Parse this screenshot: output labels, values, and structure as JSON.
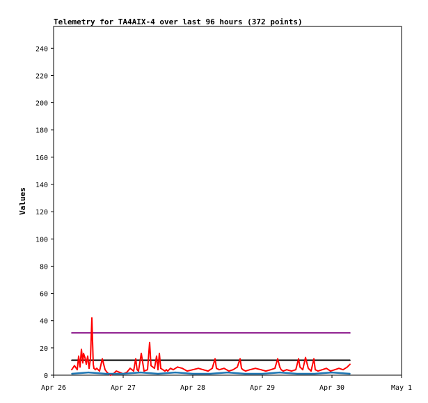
{
  "chart_data": {
    "type": "line",
    "title": "Telemetry for TA4AIX-4 over last 96 hours (372 points)",
    "xlabel": "",
    "ylabel": "Values",
    "x_ticks": [
      "Apr 26",
      "Apr 27",
      "Apr 28",
      "Apr 29",
      "Apr 30",
      "May 1"
    ],
    "x_range_days": [
      0,
      5
    ],
    "y_ticks": [
      0,
      20,
      40,
      60,
      80,
      100,
      120,
      140,
      160,
      180,
      200,
      220,
      240
    ],
    "ylim": [
      0,
      256
    ],
    "grid": false,
    "legend": "none",
    "series": [
      {
        "color": "#800080",
        "x_days": [
          0.26,
          4.26
        ],
        "values": [
          31,
          31
        ]
      },
      {
        "color": "#000000",
        "x_days": [
          0.26,
          4.26
        ],
        "values": [
          11,
          11
        ]
      },
      {
        "color": "#ff0000",
        "x_days": [
          0.26,
          0.3,
          0.34,
          0.36,
          0.38,
          0.4,
          0.42,
          0.43,
          0.45,
          0.47,
          0.49,
          0.51,
          0.53,
          0.55,
          0.57,
          0.58,
          0.6,
          0.62,
          0.64,
          0.66,
          0.7,
          0.74,
          0.77,
          0.79,
          0.82,
          0.86,
          0.9,
          0.95,
          1.0,
          1.05,
          1.1,
          1.15,
          1.18,
          1.2,
          1.22,
          1.26,
          1.3,
          1.35,
          1.38,
          1.4,
          1.45,
          1.48,
          1.5,
          1.52,
          1.54,
          1.57,
          1.6,
          1.62,
          1.64,
          1.68,
          1.72,
          1.78,
          1.85,
          1.92,
          2.0,
          2.08,
          2.15,
          2.22,
          2.28,
          2.32,
          2.34,
          2.38,
          2.45,
          2.52,
          2.58,
          2.64,
          2.68,
          2.7,
          2.72,
          2.76,
          2.82,
          2.9,
          2.98,
          3.05,
          3.12,
          3.18,
          3.22,
          3.25,
          3.27,
          3.3,
          3.35,
          3.42,
          3.48,
          3.52,
          3.54,
          3.58,
          3.62,
          3.66,
          3.7,
          3.74,
          3.76,
          3.8,
          3.86,
          3.92,
          3.98,
          4.04,
          4.1,
          4.16,
          4.22,
          4.26
        ],
        "values": [
          4,
          7,
          4,
          14,
          6,
          19,
          9,
          16,
          13,
          8,
          14,
          5,
          12,
          42,
          8,
          5,
          4,
          5,
          4,
          3,
          12,
          4,
          2,
          1,
          0,
          1,
          3,
          2,
          1,
          2,
          5,
          3,
          12,
          4,
          3,
          16,
          3,
          4,
          24,
          7,
          5,
          14,
          4,
          16,
          5,
          4,
          3,
          4,
          3,
          5,
          4,
          6,
          5,
          3,
          4,
          5,
          4,
          3,
          5,
          12,
          5,
          4,
          5,
          3,
          4,
          6,
          12,
          5,
          4,
          3,
          4,
          5,
          4,
          3,
          4,
          5,
          12,
          6,
          4,
          3,
          4,
          3,
          4,
          12,
          6,
          4,
          13,
          5,
          3,
          12,
          4,
          3,
          4,
          5,
          3,
          4,
          5,
          4,
          6,
          8
        ]
      },
      {
        "color": "#1f77b4",
        "x_days": [
          0.26,
          0.5,
          0.75,
          1.0,
          1.25,
          1.5,
          1.75,
          2.0,
          2.25,
          2.5,
          2.75,
          3.0,
          3.25,
          3.5,
          3.75,
          4.0,
          4.26
        ],
        "values": [
          1,
          2,
          1,
          1,
          2,
          1,
          2,
          1,
          1,
          2,
          1,
          1,
          2,
          1,
          1,
          2,
          1
        ]
      }
    ]
  }
}
